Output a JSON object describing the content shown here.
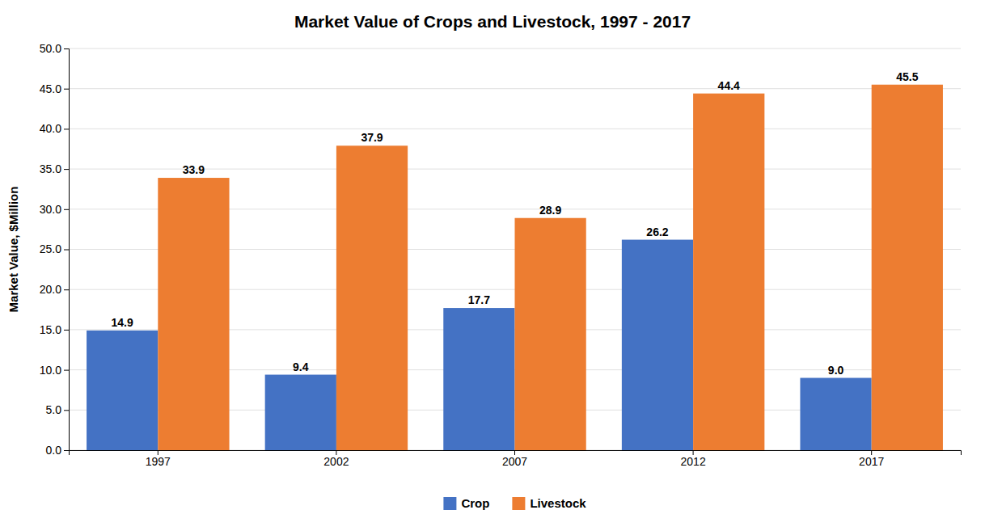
{
  "chart_data": {
    "type": "bar",
    "title": "Market Value of Crops and Livestock, 1997 - 2017",
    "y_label": "Market Value, $Million",
    "categories": [
      "1997",
      "2002",
      "2007",
      "2012",
      "2017"
    ],
    "series": [
      {
        "name": "Crop",
        "color": "#4472C4",
        "values": [
          14.9,
          9.4,
          17.7,
          26.2,
          9.0
        ],
        "value_labels": [
          "14.9",
          "9.4",
          "17.7",
          "26.2",
          "9.0"
        ]
      },
      {
        "name": "Livestock",
        "color": "#ED7D31",
        "values": [
          33.9,
          37.9,
          28.9,
          44.4,
          45.5
        ]
      }
    ],
    "ylim": [
      0,
      50.0
    ],
    "yticks": [
      {
        "value": 0,
        "label": "0.0"
      },
      {
        "value": 5,
        "label": "5.0"
      },
      {
        "value": 10,
        "label": "10.0"
      },
      {
        "value": 15,
        "label": "15.0"
      },
      {
        "value": 20,
        "label": "20.0"
      },
      {
        "value": 25,
        "label": "25.0"
      },
      {
        "value": 30,
        "label": "30.0"
      },
      {
        "value": 35,
        "label": "35.0"
      },
      {
        "value": 40,
        "label": "40.0"
      },
      {
        "value": 45,
        "label": "45.0"
      },
      {
        "value": 50,
        "label": "50.0"
      }
    ],
    "grid": true,
    "legend": "bottom",
    "data_labels": true
  }
}
